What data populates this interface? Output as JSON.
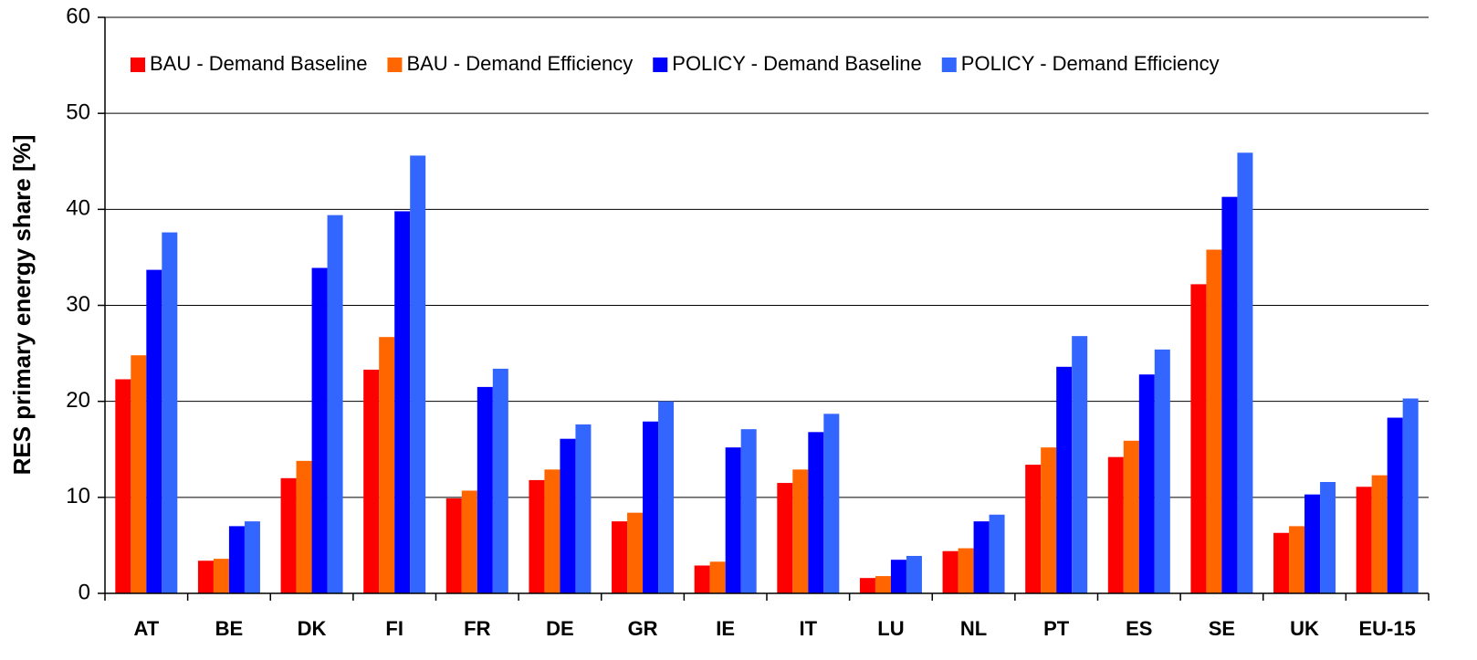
{
  "chart_data": {
    "type": "bar",
    "y_label": "RES primary energy share [%]",
    "categories": [
      "AT",
      "BE",
      "DK",
      "FI",
      "FR",
      "DE",
      "GR",
      "IE",
      "IT",
      "LU",
      "NL",
      "PT",
      "ES",
      "SE",
      "UK",
      "EU-15"
    ],
    "series": [
      {
        "name": "BAU - Demand Baseline",
        "color": "#ff0000",
        "values": [
          22.3,
          3.4,
          12.0,
          23.3,
          9.9,
          11.8,
          7.5,
          2.9,
          11.5,
          1.6,
          4.4,
          13.4,
          14.2,
          32.2,
          6.3,
          11.1
        ]
      },
      {
        "name": "BAU - Demand Efficiency",
        "color": "#ff6600",
        "values": [
          24.8,
          3.6,
          13.8,
          26.7,
          10.7,
          12.9,
          8.4,
          3.3,
          12.9,
          1.8,
          4.7,
          15.2,
          15.9,
          35.8,
          7.0,
          12.3
        ]
      },
      {
        "name": "POLICY - Demand Baseline",
        "color": "#0000ff",
        "values": [
          33.7,
          7.0,
          33.9,
          39.8,
          21.5,
          16.1,
          17.9,
          15.2,
          16.8,
          3.5,
          7.5,
          23.6,
          22.8,
          41.3,
          10.3,
          18.3
        ]
      },
      {
        "name": "POLICY - Demand Efficiency",
        "color": "#3366ff",
        "values": [
          37.6,
          7.5,
          39.4,
          45.6,
          23.4,
          17.6,
          20.0,
          17.1,
          18.7,
          3.9,
          8.2,
          26.8,
          25.4,
          45.9,
          11.6,
          20.3
        ]
      }
    ],
    "ylim": [
      0,
      60
    ],
    "yticks": [
      0,
      10,
      20,
      30,
      40,
      50,
      60
    ],
    "grid": true,
    "legend": "top"
  }
}
